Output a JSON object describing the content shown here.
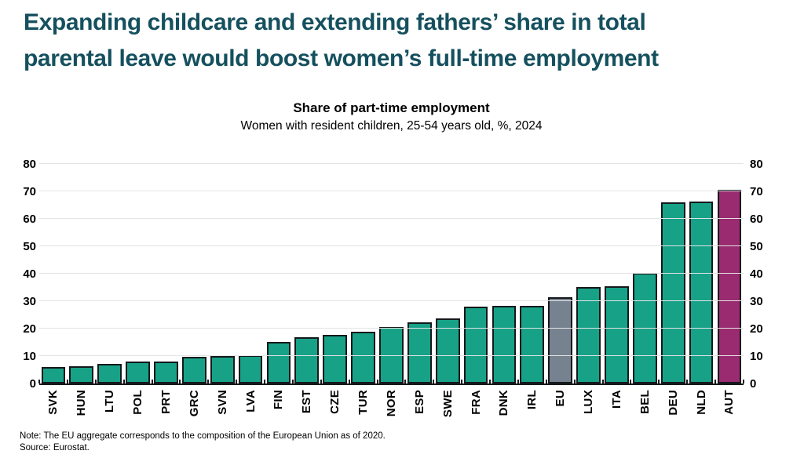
{
  "header": {
    "title_line1": "Expanding childcare and extending fathers’ share in total",
    "title_line2": "parental leave would boost women’s full-time employment",
    "title_color": "#15505E"
  },
  "chart_data": {
    "type": "bar",
    "title": "Share of part-time employment",
    "subtitle": "Women with resident children, 25-54 years old, %, 2024",
    "categories": [
      "SVK",
      "HUN",
      "LTU",
      "POL",
      "PRT",
      "GRC",
      "SVN",
      "LVA",
      "FIN",
      "EST",
      "CZE",
      "TUR",
      "NOR",
      "ESP",
      "SWE",
      "FRA",
      "DNK",
      "IRL",
      "EU",
      "LUX",
      "ITA",
      "BEL",
      "DEU",
      "NLD",
      "AUT"
    ],
    "values": [
      6.1,
      6.3,
      7.2,
      7.9,
      8.0,
      9.6,
      10.0,
      10.4,
      15.2,
      16.9,
      17.6,
      18.9,
      20.7,
      22.2,
      23.6,
      27.9,
      28.2,
      28.3,
      31.5,
      35.2,
      35.4,
      40.4,
      65.9,
      66.4,
      70.5
    ],
    "ylim": [
      0,
      80
    ],
    "yticks": [
      0,
      10,
      20,
      30,
      40,
      50,
      60,
      70,
      80
    ],
    "grid": "horizontal",
    "legend": "none",
    "bar_color_default": "#17A287",
    "bar_color_overrides": {
      "EU": "#76828F",
      "AUT": "#9A2B70"
    },
    "bar_outline_color": "#15191C"
  },
  "footer": {
    "note": "Note: The EU aggregate corresponds to the composition of the European Union as of 2020.",
    "source": "Source: Eurostat."
  }
}
